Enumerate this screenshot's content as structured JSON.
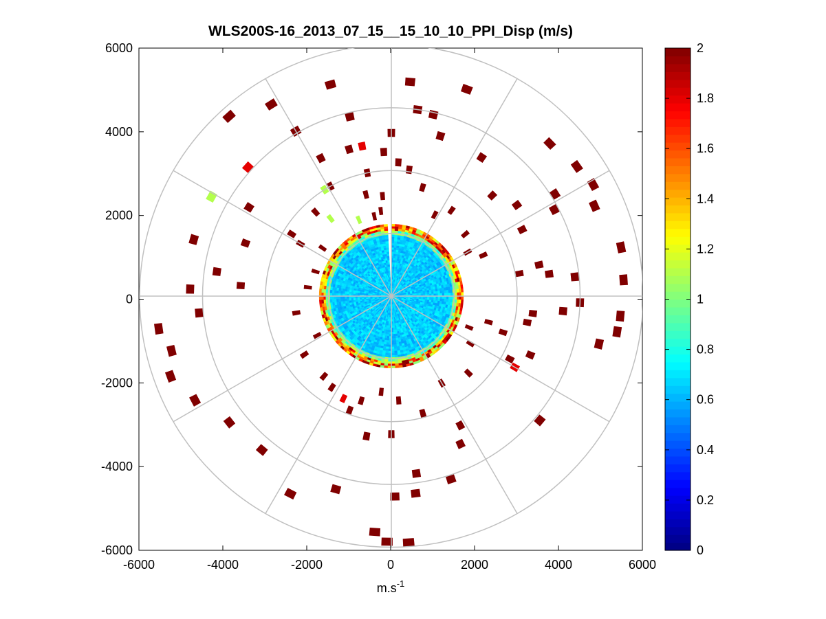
{
  "chart_data": {
    "type": "heatmap",
    "subtype": "polar-ppi",
    "title": "WLS200S-16_2013_07_15__15_10_10_PPI_Disp (m/s)",
    "xlabel": "m.s",
    "xlabel_superscript": "-1",
    "ylabel": "",
    "xlim": [
      -6000,
      6000
    ],
    "ylim": [
      -6000,
      6000
    ],
    "x_ticks": [
      -6000,
      -4000,
      -2000,
      0,
      2000,
      4000,
      6000
    ],
    "y_ticks": [
      -6000,
      -4000,
      -2000,
      0,
      2000,
      4000,
      6000
    ],
    "x_tick_labels": [
      "-6000",
      "-4000",
      "-2000",
      "0",
      "2000",
      "4000",
      "6000"
    ],
    "y_tick_labels": [
      "-6000",
      "-4000",
      "-2000",
      "0",
      "2000",
      "4000",
      "6000"
    ],
    "range_rings_m": [
      1500,
      3000,
      4500,
      6000
    ],
    "radial_spokes_deg": [
      0,
      30,
      60,
      90,
      120,
      150,
      180,
      210,
      240,
      270,
      300,
      330
    ],
    "grid": true,
    "colorbar": {
      "colormap": "jet",
      "range": [
        0,
        2
      ],
      "ticks": [
        0,
        0.2,
        0.4,
        0.6,
        0.8,
        1,
        1.2,
        1.4,
        1.6,
        1.8,
        2
      ],
      "tick_labels": [
        "0",
        "0.2",
        "0.4",
        "0.6",
        "0.8",
        "1",
        "1.2",
        "1.4",
        "1.6",
        "1.8",
        "2"
      ]
    },
    "near_field": {
      "description": "dense region of valid measurements within ~1700 m of lidar",
      "radius_m": 1720,
      "typical_value": 0.65,
      "edge_value_range": [
        1.0,
        2.0
      ],
      "gap_azimuth_deg": [
        357,
        361
      ],
      "gap_min_range_m": 300
    },
    "bins": [
      {
        "r": 5780,
        "az": 318,
        "v": 2
      },
      {
        "r": 5400,
        "az": 328,
        "v": 2
      },
      {
        "r": 5260,
        "az": 344,
        "v": 2
      },
      {
        "r": 5140,
        "az": 5,
        "v": 2
      },
      {
        "r": 5260,
        "az": 20,
        "v": 2
      },
      {
        "r": 5250,
        "az": 46,
        "v": 2
      },
      {
        "r": 5400,
        "az": 55,
        "v": 2
      },
      {
        "r": 5500,
        "az": 61,
        "v": 2
      },
      {
        "r": 5300,
        "az": 66,
        "v": 2
      },
      {
        "r": 5600,
        "az": 78,
        "v": 2
      },
      {
        "r": 5550,
        "az": 86,
        "v": 2
      },
      {
        "r": 5480,
        "az": 95,
        "v": 2
      },
      {
        "r": 5450,
        "az": 99,
        "v": 2
      },
      {
        "r": 5080,
        "az": 103,
        "v": 2
      },
      {
        "r": 4620,
        "az": 130,
        "v": 2
      },
      {
        "r": 5600,
        "az": 262,
        "v": 2
      },
      {
        "r": 5400,
        "az": 256,
        "v": 2
      },
      {
        "r": 5600,
        "az": 250,
        "v": 2
      },
      {
        "r": 5300,
        "az": 242,
        "v": 2
      },
      {
        "r": 4900,
        "az": 232,
        "v": 2
      },
      {
        "r": 4800,
        "az": 220,
        "v": 2
      },
      {
        "r": 5300,
        "az": 207,
        "v": 2
      },
      {
        "r": 4800,
        "az": 196,
        "v": 2
      },
      {
        "r": 5650,
        "az": 184,
        "v": 2
      },
      {
        "r": 5870,
        "az": 181,
        "v": 2
      },
      {
        "r": 5900,
        "az": 176,
        "v": 2
      },
      {
        "r": 4750,
        "az": 173,
        "v": 2
      },
      {
        "r": 4790,
        "az": 179,
        "v": 2
      },
      {
        "r": 4280,
        "az": 172,
        "v": 2
      },
      {
        "r": 4600,
        "az": 162,
        "v": 2
      },
      {
        "r": 3900,
        "az": 155,
        "v": 2
      },
      {
        "r": 3500,
        "az": 152,
        "v": 2
      },
      {
        "r": 4600,
        "az": 265,
        "v": 2
      },
      {
        "r": 4800,
        "az": 272,
        "v": 2
      },
      {
        "r": 4900,
        "az": 286,
        "v": 2
      },
      {
        "r": 4200,
        "az": 278,
        "v": 2
      },
      {
        "r": 4000,
        "az": 302,
        "v": 2
      },
      {
        "r": 4550,
        "az": 330,
        "v": 2
      },
      {
        "r": 3700,
        "az": 333,
        "v": 2
      },
      {
        "r": 4400,
        "az": 347,
        "v": 2
      },
      {
        "r": 3650,
        "az": 344,
        "v": 2
      },
      {
        "r": 3900,
        "az": 0,
        "v": 2
      },
      {
        "r": 4500,
        "az": 8,
        "v": 2
      },
      {
        "r": 4450,
        "az": 13,
        "v": 2
      },
      {
        "r": 4000,
        "az": 17,
        "v": 2
      },
      {
        "r": 3950,
        "az": 33,
        "v": 2
      },
      {
        "r": 3400,
        "az": 45,
        "v": 2
      },
      {
        "r": 4600,
        "az": 58,
        "v": 2
      },
      {
        "r": 4400,
        "az": 62,
        "v": 2
      },
      {
        "r": 3700,
        "az": 54,
        "v": 2
      },
      {
        "r": 3500,
        "az": 63,
        "v": 2
      },
      {
        "r": 3600,
        "az": 78,
        "v": 2
      },
      {
        "r": 3800,
        "az": 82,
        "v": 2
      },
      {
        "r": 4400,
        "az": 84,
        "v": 2
      },
      {
        "r": 3100,
        "az": 80,
        "v": 2
      },
      {
        "r": 4500,
        "az": 92,
        "v": 2
      },
      {
        "r": 4110,
        "az": 95,
        "v": 2
      },
      {
        "r": 3400,
        "az": 97,
        "v": 2
      },
      {
        "r": 3300,
        "az": 101,
        "v": 2
      },
      {
        "r": 2800,
        "az": 108,
        "v": 2
      },
      {
        "r": 3600,
        "az": 113,
        "v": 2
      },
      {
        "r": 3200,
        "az": 118,
        "v": 2
      },
      {
        "r": 2600,
        "az": 135,
        "v": 2
      },
      {
        "r": 2400,
        "az": 150,
        "v": 2
      },
      {
        "r": 2900,
        "az": 165,
        "v": 2
      },
      {
        "r": 2500,
        "az": 176,
        "v": 2
      },
      {
        "r": 3300,
        "az": 180,
        "v": 2
      },
      {
        "r": 3400,
        "az": 190,
        "v": 2
      },
      {
        "r": 2900,
        "az": 200,
        "v": 2
      },
      {
        "r": 2600,
        "az": 213,
        "v": 2
      },
      {
        "r": 2500,
        "az": 220,
        "v": 2
      },
      {
        "r": 2500,
        "az": 236,
        "v": 2
      },
      {
        "r": 2300,
        "az": 260,
        "v": 2
      },
      {
        "r": 2000,
        "az": 276,
        "v": 2
      },
      {
        "r": 3600,
        "az": 274,
        "v": 2
      },
      {
        "r": 3700,
        "az": 290,
        "v": 2
      },
      {
        "r": 2800,
        "az": 302,
        "v": 2
      },
      {
        "r": 2500,
        "az": 300,
        "v": 2
      },
      {
        "r": 2700,
        "az": 318,
        "v": 2
      },
      {
        "r": 3000,
        "az": 331,
        "v": 2
      },
      {
        "r": 2500,
        "az": 346,
        "v": 2
      },
      {
        "r": 2400,
        "az": 355,
        "v": 2
      },
      {
        "r": 3450,
        "az": 357,
        "v": 2
      },
      {
        "r": 3200,
        "az": 3,
        "v": 2
      },
      {
        "r": 3050,
        "az": 8,
        "v": 2
      },
      {
        "r": 2700,
        "az": 16,
        "v": 2
      },
      {
        "r": 2200,
        "az": 28,
        "v": 2
      },
      {
        "r": 2500,
        "az": 35,
        "v": 2
      },
      {
        "r": 2300,
        "az": 50,
        "v": 2
      },
      {
        "r": 2400,
        "az": 66,
        "v": 2
      },
      {
        "r": 2100,
        "az": 60,
        "v": 2
      },
      {
        "r": 2000,
        "az": 112,
        "v": 2
      },
      {
        "r": 2400,
        "az": 105,
        "v": 2
      },
      {
        "r": 2200,
        "az": 121,
        "v": 2
      },
      {
        "r": 2600,
        "az": 196,
        "v": 2
      },
      {
        "r": 2300,
        "az": 186,
        "v": 2
      },
      {
        "r": 2000,
        "az": 242,
        "v": 2
      },
      {
        "r": 1900,
        "az": 288,
        "v": 2
      },
      {
        "r": 2000,
        "az": 305,
        "v": 2
      },
      {
        "r": 3000,
        "az": 349,
        "v": 2
      },
      {
        "r": 1950,
        "az": 348,
        "v": 2
      },
      {
        "r": 2050,
        "az": 353,
        "v": 2
      },
      {
        "r": 4900,
        "az": 299,
        "v": 1.1
      },
      {
        "r": 4600,
        "az": 312,
        "v": 1.8
      },
      {
        "r": 3650,
        "az": 349,
        "v": 1.8
      },
      {
        "r": 2700,
        "az": 205,
        "v": 1.8
      },
      {
        "r": 3400,
        "az": 120,
        "v": 1.8
      },
      {
        "r": 2350,
        "az": 322,
        "v": 1.1
      },
      {
        "r": 1980,
        "az": 337,
        "v": 1.1
      },
      {
        "r": 3000,
        "az": 328,
        "v": 1.1
      }
    ]
  }
}
